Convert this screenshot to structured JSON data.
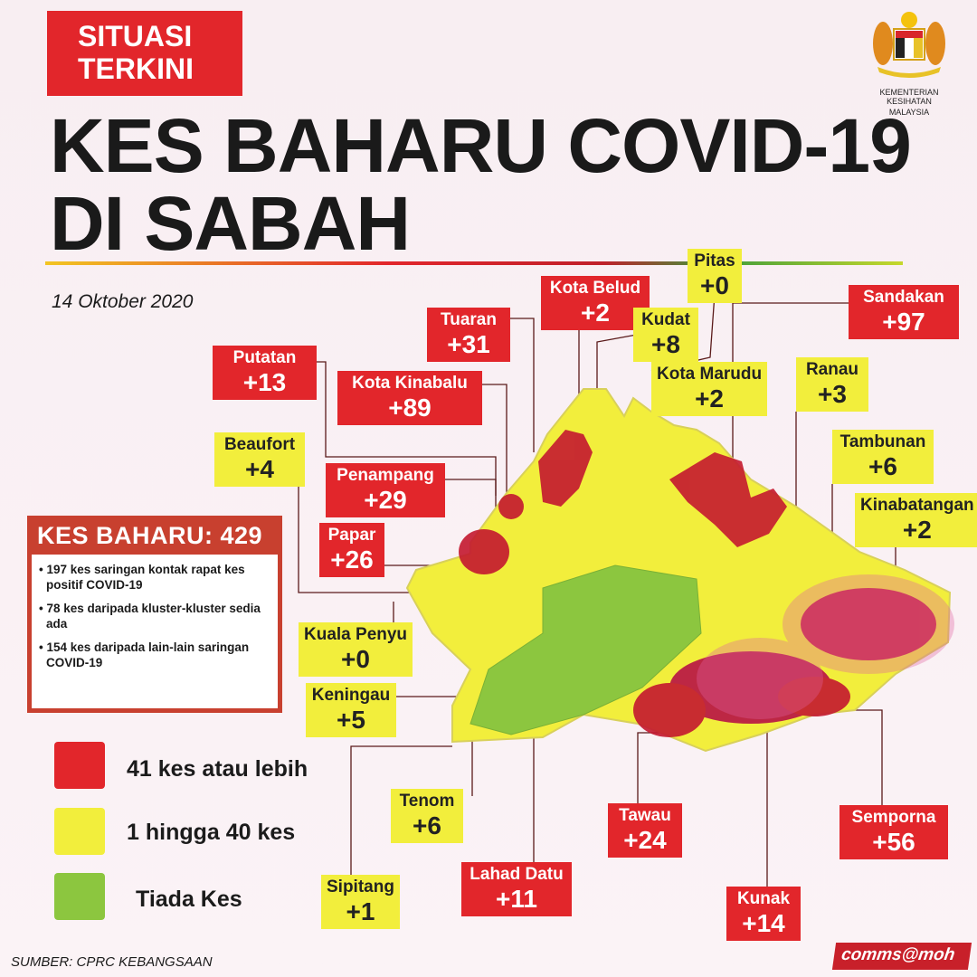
{
  "header": {
    "badge": "SITUASI TERKINI",
    "title_line1": "KES BAHARU COVID-19",
    "title_line2": "DI SABAH",
    "date": "14 Oktober 2020"
  },
  "logo": {
    "org_line1": "KEMENTERIAN KESIHATAN",
    "org_line2": "MALAYSIA"
  },
  "colors": {
    "red": "#e2262b",
    "yellow": "#f2ee3c",
    "green": "#8cc63f"
  },
  "districts": [
    {
      "name": "Pitas",
      "cases": "+0",
      "level": "yellow"
    },
    {
      "name": "Kota Belud",
      "cases": "+2",
      "level": "red"
    },
    {
      "name": "Tuaran",
      "cases": "+31",
      "level": "red"
    },
    {
      "name": "Kudat",
      "cases": "+8",
      "level": "yellow"
    },
    {
      "name": "Sandakan",
      "cases": "+97",
      "level": "red"
    },
    {
      "name": "Putatan",
      "cases": "+13",
      "level": "red"
    },
    {
      "name": "Kota Kinabalu",
      "cases": "+89",
      "level": "red"
    },
    {
      "name": "Kota Marudu",
      "cases": "+2",
      "level": "yellow"
    },
    {
      "name": "Ranau",
      "cases": "+3",
      "level": "yellow"
    },
    {
      "name": "Beaufort",
      "cases": "+4",
      "level": "yellow"
    },
    {
      "name": "Penampang",
      "cases": "+29",
      "level": "red"
    },
    {
      "name": "Tambunan",
      "cases": "+6",
      "level": "yellow"
    },
    {
      "name": "Kinabatangan",
      "cases": "+2",
      "level": "yellow"
    },
    {
      "name": "Papar",
      "cases": "+26",
      "level": "red"
    },
    {
      "name": "Kuala Penyu",
      "cases": "+0",
      "level": "yellow"
    },
    {
      "name": "Keningau",
      "cases": "+5",
      "level": "yellow"
    },
    {
      "name": "Tenom",
      "cases": "+6",
      "level": "yellow"
    },
    {
      "name": "Tawau",
      "cases": "+24",
      "level": "red"
    },
    {
      "name": "Semporna",
      "cases": "+56",
      "level": "red"
    },
    {
      "name": "Sipitang",
      "cases": "+1",
      "level": "yellow"
    },
    {
      "name": "Lahad Datu",
      "cases": "+11",
      "level": "red"
    },
    {
      "name": "Kunak",
      "cases": "+14",
      "level": "red"
    }
  ],
  "summary": {
    "heading": "KES BAHARU: 429",
    "items": [
      "197 kes saringan kontak rapat kes positif COVID-19",
      "78 kes daripada kluster-kluster sedia ada",
      "154 kes daripada lain-lain saringan COVID-19"
    ]
  },
  "legend": [
    {
      "label": "41 kes atau lebih",
      "color": "#e2262b"
    },
    {
      "label": "1 hingga 40 kes",
      "color": "#f2ee3c"
    },
    {
      "label": "Tiada Kes",
      "color": "#8cc63f"
    }
  ],
  "footer": {
    "source": "SUMBER: CPRC KEBANGSAAN",
    "credit": "comms@moh"
  }
}
